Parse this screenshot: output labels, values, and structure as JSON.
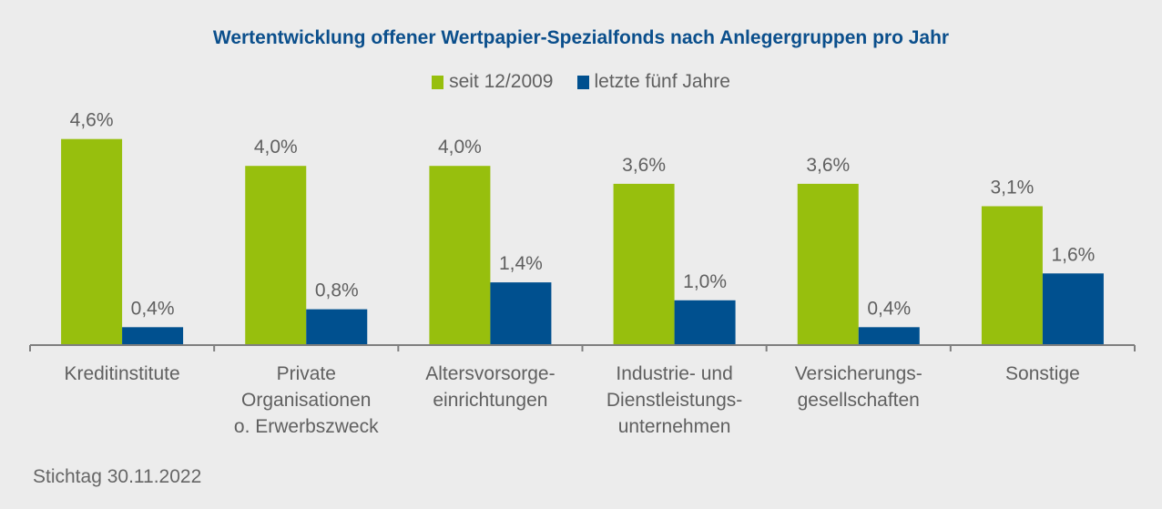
{
  "chart_data": {
    "type": "bar",
    "title": "Wertentwicklung offener Wertpapier-Spezialfonds nach Anlegergruppen pro Jahr",
    "xlabel": "",
    "ylabel": "",
    "ylim": [
      0,
      5
    ],
    "grid": false,
    "legend_position": "top-center",
    "categories": [
      [
        "Kreditinstitute"
      ],
      [
        "Private",
        "Organisationen",
        "o. Erwerbszweck"
      ],
      [
        "Altersvorsorge-",
        "einrichtungen"
      ],
      [
        "Industrie- und",
        "Dienstleistungs-",
        "unternehmen"
      ],
      [
        "Versicherungs-",
        "gesellschaften"
      ],
      [
        "Sonstige"
      ]
    ],
    "series": [
      {
        "name": "seit 12/2009",
        "color": "#97bf0d",
        "values": [
          4.6,
          4.0,
          4.0,
          3.6,
          3.6,
          3.1
        ],
        "labels": [
          "4,6%",
          "4,0%",
          "4,0%",
          "3,6%",
          "3,6%",
          "3,1%"
        ]
      },
      {
        "name": "letzte fünf Jahre",
        "color": "#00508f",
        "values": [
          0.4,
          0.8,
          1.4,
          1.0,
          0.4,
          1.6
        ],
        "labels": [
          "0,4%",
          "0,8%",
          "1,4%",
          "1,0%",
          "0,4%",
          "1,6%"
        ]
      }
    ]
  },
  "footer": "Stichtag 30.11.2022",
  "colors": {
    "title": "#0b4f8c",
    "text": "#606060",
    "axis": "#7f7f7f",
    "background": "#ececec"
  }
}
